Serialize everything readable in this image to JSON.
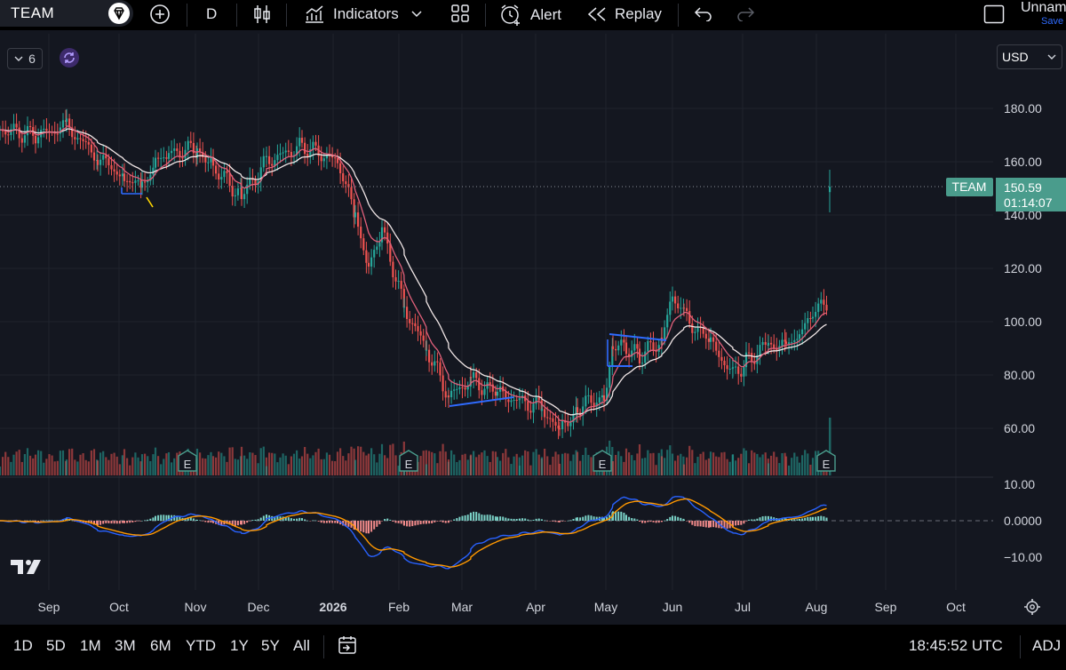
{
  "toolbar": {
    "symbol": "TEAM",
    "interval": "D",
    "indicators_label": "Indicators",
    "alert_label": "Alert",
    "replay_label": "Replay",
    "layout_name": "Unnam",
    "save_label": "Save"
  },
  "chart": {
    "interval_pill": "6",
    "currency": "USD",
    "ticker_tag": "TEAM",
    "last_price": "150.59",
    "countdown": "01:14:07",
    "price_ticks": [
      "180.00",
      "160.00",
      "140.00",
      "120.00",
      "100.00",
      "80.00",
      "60.00"
    ],
    "macd_ticks": [
      "10.00",
      "0.0000",
      "−10.00"
    ],
    "date_ticks": [
      "Sep",
      "Oct",
      "Nov",
      "Dec",
      "2026",
      "Feb",
      "Mar",
      "Apr",
      "May",
      "Jun",
      "Jul",
      "Aug",
      "Sep",
      "Oct"
    ],
    "earnings_marker": "E",
    "colors": {
      "up": "#26a69a",
      "down": "#ef5350",
      "ema_fast": "#e0607a",
      "ema_slow": "#f0e6e6",
      "macd": "#2962ff",
      "signal": "#ff9800",
      "tag_bg": "#4a9c8c",
      "drawing": "#2f6bff"
    }
  },
  "chart_data": {
    "type": "candlestick",
    "symbol": "TEAM",
    "price_axis": [
      60,
      180
    ],
    "macd_axis": [
      -10,
      10
    ],
    "last_price": 150.59,
    "approx_close_path": [
      {
        "date": "Sep",
        "close": 172
      },
      {
        "date": "Oct",
        "close": 157
      },
      {
        "date": "Nov",
        "close": 168
      },
      {
        "date": "Dec",
        "close": 155
      },
      {
        "date": "2026",
        "close": 162
      },
      {
        "date": "Feb",
        "close": 103
      },
      {
        "date": "Mar",
        "close": 72
      },
      {
        "date": "Apr",
        "close": 66
      },
      {
        "date": "May",
        "close": 88
      },
      {
        "date": "Jun",
        "close": 100
      },
      {
        "date": "Jul",
        "close": 84
      },
      {
        "date": "Aug",
        "close": 150.59
      }
    ],
    "earnings_dates": [
      "Oct",
      "Feb",
      "May",
      "Aug"
    ],
    "time_ranges": [
      "1D",
      "5D",
      "1M",
      "3M",
      "6M",
      "YTD",
      "1Y",
      "5Y",
      "All"
    ],
    "time_display": "18:45:52 UTC",
    "adj_label": "ADJ"
  }
}
